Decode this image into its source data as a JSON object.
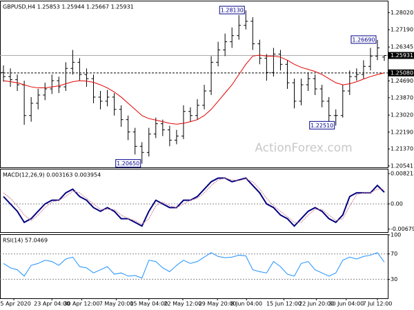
{
  "chart_data": [
    {
      "type": "ohlc",
      "title": "GBPUSD,H4  1.25853 1.25944 1.25667 1.25931",
      "watermark": "ActionForex.com",
      "color": "#000000",
      "ma_color": "#e00000",
      "open": [
        1.251,
        1.249,
        1.2475,
        1.245,
        1.23,
        1.236,
        1.24,
        1.243,
        1.247,
        1.244,
        1.253,
        1.256,
        1.25,
        1.248,
        1.239,
        1.237,
        1.239,
        1.233,
        1.228,
        1.222,
        1.215,
        1.212,
        1.221,
        1.226,
        1.223,
        1.218,
        1.22,
        1.232,
        1.23,
        1.235,
        1.242,
        1.256,
        1.262,
        1.266,
        1.269,
        1.274,
        1.276,
        1.265,
        1.258,
        1.251,
        1.26,
        1.255,
        1.246,
        1.237,
        1.245,
        1.248,
        1.243,
        1.237,
        1.23,
        1.23,
        1.242,
        1.249,
        1.25,
        1.254,
        1.259,
        1.25853
      ],
      "high": [
        1.2545,
        1.253,
        1.25,
        1.247,
        1.239,
        1.243,
        1.246,
        1.25,
        1.249,
        1.256,
        1.262,
        1.258,
        1.253,
        1.25,
        1.242,
        1.2425,
        1.241,
        1.235,
        1.23,
        1.224,
        1.217,
        1.224,
        1.229,
        1.228,
        1.225,
        1.223,
        1.235,
        1.234,
        1.238,
        1.245,
        1.259,
        1.266,
        1.27,
        1.273,
        1.279,
        1.2813,
        1.278,
        1.267,
        1.26,
        1.263,
        1.262,
        1.257,
        1.248,
        1.248,
        1.251,
        1.25,
        1.245,
        1.239,
        1.233,
        1.245,
        1.252,
        1.253,
        1.257,
        1.263,
        1.2669,
        1.25944
      ],
      "low": [
        1.2465,
        1.244,
        1.242,
        1.2255,
        1.227,
        1.233,
        1.2375,
        1.2405,
        1.241,
        1.242,
        1.25,
        1.247,
        1.244,
        1.236,
        1.233,
        1.2345,
        1.23,
        1.2245,
        1.218,
        1.211,
        1.2065,
        1.21,
        1.219,
        1.22,
        1.215,
        1.216,
        1.2185,
        1.227,
        1.228,
        1.233,
        1.24,
        1.254,
        1.259,
        1.263,
        1.267,
        1.272,
        1.262,
        1.255,
        1.247,
        1.249,
        1.252,
        1.243,
        1.2335,
        1.235,
        1.242,
        1.24,
        1.234,
        1.227,
        1.2251,
        1.229,
        1.24,
        1.247,
        1.248,
        1.252,
        1.257,
        1.25667
      ],
      "close": [
        1.249,
        1.2475,
        1.245,
        1.23,
        1.236,
        1.24,
        1.243,
        1.247,
        1.244,
        1.253,
        1.256,
        1.25,
        1.248,
        1.239,
        1.237,
        1.239,
        1.233,
        1.228,
        1.222,
        1.215,
        1.212,
        1.221,
        1.226,
        1.223,
        1.218,
        1.22,
        1.232,
        1.23,
        1.235,
        1.242,
        1.256,
        1.262,
        1.266,
        1.269,
        1.274,
        1.276,
        1.265,
        1.258,
        1.251,
        1.26,
        1.255,
        1.246,
        1.237,
        1.245,
        1.248,
        1.243,
        1.237,
        1.23,
        1.23,
        1.242,
        1.249,
        1.25,
        1.254,
        1.259,
        1.263,
        1.25931
      ],
      "ma": [
        1.247,
        1.2465,
        1.246,
        1.245,
        1.244,
        1.2435,
        1.2435,
        1.244,
        1.2445,
        1.2455,
        1.2465,
        1.247,
        1.2468,
        1.2462,
        1.245,
        1.2435,
        1.2415,
        1.239,
        1.236,
        1.233,
        1.23,
        1.2285,
        1.2278,
        1.227,
        1.2262,
        1.2258,
        1.2262,
        1.227,
        1.228,
        1.23,
        1.233,
        1.237,
        1.241,
        1.245,
        1.25,
        1.255,
        1.259,
        1.2595,
        1.259,
        1.259,
        1.2585,
        1.257,
        1.255,
        1.2535,
        1.2525,
        1.2515,
        1.25,
        1.248,
        1.246,
        1.245,
        1.2455,
        1.2465,
        1.2478,
        1.249,
        1.25,
        1.2508
      ],
      "annotations": [
        {
          "value": 1.2813,
          "label": "1.28130"
        },
        {
          "value": 1.2065,
          "label": "1.20650"
        },
        {
          "value": 1.2251,
          "label": "1.22510"
        },
        {
          "value": 1.2669,
          "label": "1.26690"
        }
      ],
      "price_line": {
        "value": 1.25931,
        "label": "1.25931"
      },
      "level_line": {
        "value": 1.2508,
        "label": "1.25080"
      },
      "xlim": [
        -0.5,
        55.5
      ],
      "ylim": [
        1.2047,
        1.2857
      ],
      "yticks": [
        {
          "value": 1.2802,
          "label": "1.28020"
        },
        {
          "value": 1.2719,
          "label": "1.27190"
        },
        {
          "value": 1.26345,
          "label": "1.26345"
        },
        {
          "value": 1.2469,
          "label": "1.24690"
        },
        {
          "value": 1.2387,
          "label": "1.23870"
        },
        {
          "value": 1.2302,
          "label": "1.23020"
        },
        {
          "value": 1.2219,
          "label": "1.22190"
        },
        {
          "value": 1.2137,
          "label": "1.21370"
        },
        {
          "value": 1.20541,
          "label": "1.20541"
        }
      ]
    },
    {
      "type": "line",
      "title": "MACD(12,26,9) 0.003163 0.003954",
      "xlim": [
        -0.5,
        55.5
      ],
      "ylim": [
        -0.00765,
        0.00933
      ],
      "yticks": [
        {
          "value": 0.008213,
          "label": "0.008213"
        },
        {
          "value": 0,
          "label": "0.00"
        },
        {
          "value": -0.006796,
          "label": "-0.006796"
        }
      ],
      "series": [
        {
          "name": "MACD",
          "color": "#000080",
          "values": [
            0.002,
            0.0,
            -0.002,
            -0.005,
            -0.004,
            -0.002,
            0.0,
            0.001,
            0.001,
            0.003,
            0.004,
            0.002,
            0.001,
            -0.001,
            -0.002,
            -0.001,
            -0.002,
            -0.004,
            -0.004,
            -0.005,
            -0.006,
            -0.002,
            0.001,
            0.0,
            -0.001,
            -0.001,
            0.001,
            0.001,
            0.002,
            0.004,
            0.006,
            0.007,
            0.007,
            0.006,
            0.0065,
            0.007,
            0.005,
            0.003,
            0.0,
            -0.001,
            -0.003,
            -0.004,
            -0.006,
            -0.004,
            -0.002,
            -0.001,
            -0.002,
            -0.004,
            -0.005,
            -0.003,
            0.002,
            0.003,
            0.003,
            0.003,
            0.005,
            0.003163
          ]
        },
        {
          "name": "Signal",
          "color": "#d08090",
          "values": [
            0.003,
            0.0015,
            -0.0005,
            -0.003,
            -0.0045,
            -0.003,
            -0.001,
            0.0005,
            0.001,
            0.002,
            0.0035,
            0.003,
            0.0015,
            0.0,
            -0.0015,
            -0.0015,
            -0.0015,
            -0.003,
            -0.004,
            -0.0045,
            -0.0055,
            -0.004,
            -0.0005,
            0.0005,
            -0.0005,
            -0.001,
            0.0,
            0.001,
            0.0015,
            0.003,
            0.005,
            0.0065,
            0.007,
            0.0065,
            0.0063,
            0.0068,
            0.006,
            0.004,
            0.0015,
            -0.0005,
            -0.002,
            -0.0035,
            -0.005,
            -0.005,
            -0.003,
            -0.0015,
            -0.0015,
            -0.003,
            -0.0045,
            -0.004,
            -0.0005,
            0.0025,
            0.003,
            0.003,
            0.004,
            0.003954
          ]
        }
      ]
    },
    {
      "type": "line",
      "title": "RSI(14) 57.0469",
      "xlim": [
        -0.5,
        55.5
      ],
      "ylim": [
        0,
        100
      ],
      "yticks": [
        100,
        70,
        30
      ],
      "xticks": [
        {
          "value": 1.5,
          "label": "15 Apr 2020"
        },
        {
          "value": 7,
          "label": "23 Apr 04:00"
        },
        {
          "value": 11.3,
          "label": "30 Apr 12:00"
        },
        {
          "value": 16.3,
          "label": "7 May 20:00"
        },
        {
          "value": 21,
          "label": "15 May 04:00"
        },
        {
          "value": 25.9,
          "label": "22 May 12:00"
        },
        {
          "value": 30.9,
          "label": "29 May 20:00"
        },
        {
          "value": 35.1,
          "label": "8 Jun 04:00"
        },
        {
          "value": 40.5,
          "label": "15 Jun 12:00"
        },
        {
          "value": 45.2,
          "label": "22 Jun 20:00"
        },
        {
          "value": 49.5,
          "label": "30 Jun 04:00"
        },
        {
          "value": 54,
          "label": "7 Jul 12:00"
        }
      ],
      "series": [
        {
          "name": "RSI",
          "color": "#1e90ff",
          "values": [
            55,
            48,
            45,
            35,
            52,
            55,
            60,
            58,
            52,
            62,
            65,
            50,
            48,
            40,
            45,
            50,
            38,
            40,
            35,
            36,
            32,
            60,
            58,
            48,
            42,
            52,
            60,
            55,
            58,
            65,
            72,
            66,
            64,
            65,
            68,
            67,
            45,
            42,
            40,
            58,
            50,
            38,
            35,
            55,
            58,
            45,
            40,
            35,
            40,
            60,
            65,
            62,
            66,
            68,
            72,
            57.0469
          ]
        }
      ]
    }
  ]
}
